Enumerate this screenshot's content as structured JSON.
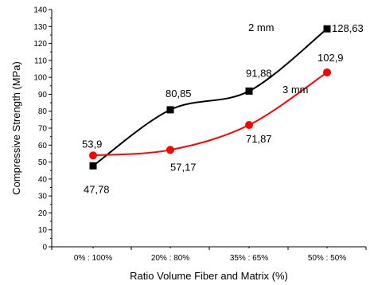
{
  "chart_data": {
    "type": "line",
    "title": "",
    "xlabel": "Ratio Volume Fiber and Matrix (%)",
    "ylabel": "Compressive Strength (MPa)",
    "categories": [
      "0% : 100%",
      "20% : 80%",
      "35% : 65%",
      "50% : 50%"
    ],
    "ylim": [
      0,
      140
    ],
    "yticks": [
      0,
      10,
      20,
      30,
      40,
      50,
      60,
      70,
      80,
      90,
      100,
      110,
      120,
      130,
      140
    ],
    "grid": false,
    "legend": "none",
    "series": [
      {
        "name": "2 mm",
        "marker": "square",
        "color": "#000000",
        "values": [
          47.78,
          80.85,
          91.88,
          128.63
        ],
        "value_labels": [
          "47,78",
          "80,85",
          "91,88",
          "128,63"
        ]
      },
      {
        "name": "3 mm",
        "marker": "circle",
        "color": "#ff0000",
        "values": [
          53.9,
          57.17,
          71.87,
          102.9
        ],
        "value_labels": [
          "53,9",
          "57,17",
          "71,87",
          "102,9"
        ]
      }
    ]
  }
}
